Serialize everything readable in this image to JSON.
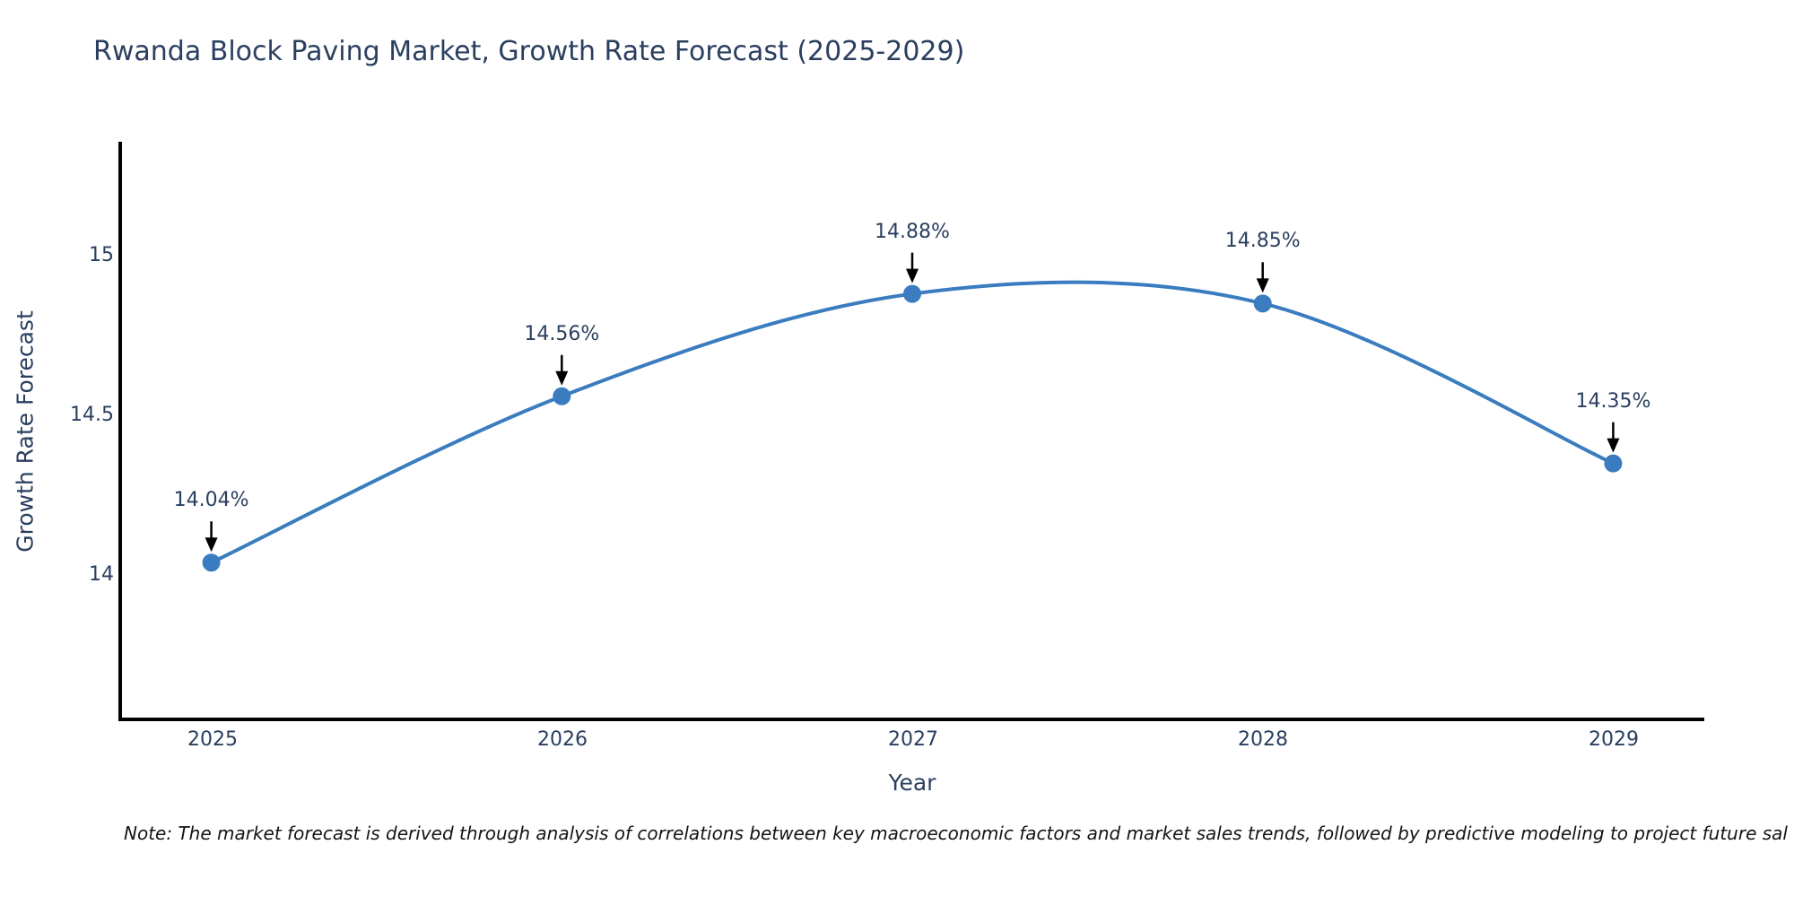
{
  "figure": {
    "title": "Rwanda Block Paving Market, Growth Rate Forecast (2025-2029)",
    "note": "Note: The market forecast is derived through analysis of correlations between key macroeconomic factors and market sales trends, followed by predictive modeling to project future sal",
    "x_axis": {
      "label": "Year",
      "tick_labels": [
        "2025",
        "2026",
        "2027",
        "2028",
        "2029"
      ]
    },
    "y_axis": {
      "label": "Growth Rate Forecast",
      "tick_labels": [
        "14",
        "14.5",
        "15"
      ]
    }
  },
  "chart_data": {
    "type": "line",
    "title": "Rwanda Block Paving Market, Growth Rate Forecast (2025-2029)",
    "xlabel": "Year",
    "ylabel": "Growth Rate Forecast",
    "x": [
      2025,
      2026,
      2027,
      2028,
      2029
    ],
    "series": [
      {
        "name": "Growth Rate Forecast",
        "values": [
          14.04,
          14.56,
          14.88,
          14.85,
          14.35
        ]
      }
    ],
    "point_labels": [
      "14.04%",
      "14.56%",
      "14.88%",
      "14.85%",
      "14.35%"
    ],
    "xlim": [
      2024.74,
      2029.26
    ],
    "ylim": [
      13.55,
      15.35
    ],
    "yticks": [
      14,
      14.5,
      15
    ],
    "grid": false,
    "legend": false,
    "line_shape": "spline",
    "marker_size": 10,
    "line_width": 4,
    "colors": {
      "line": "#3a7cbf",
      "marker": "#3a7cbf",
      "axis_line": "#000000",
      "axis_text": "#2a3f5f",
      "annotation_arrow": "#000000",
      "annotation_text": "#2a3f5f",
      "note_text": "#141414",
      "background": "#ffffff"
    }
  }
}
